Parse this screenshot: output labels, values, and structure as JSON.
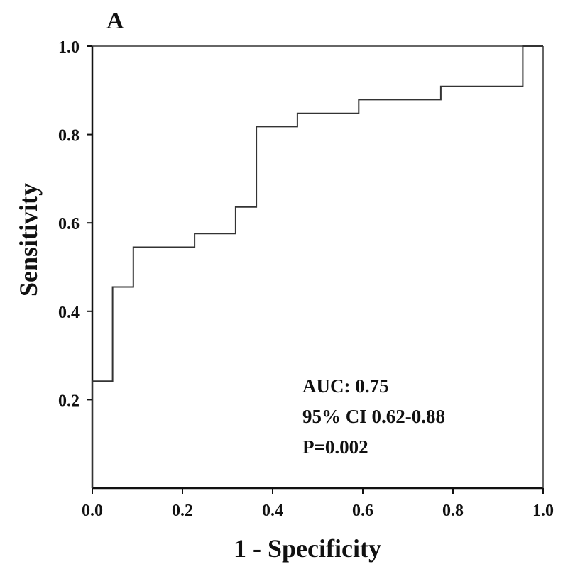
{
  "chart_data": {
    "type": "line",
    "panel_label": "A",
    "xlabel": "1 - Specificity",
    "ylabel": "Sensitivity",
    "xlim": [
      0.0,
      1.0
    ],
    "ylim": [
      0.0,
      1.0
    ],
    "x_ticks": [
      "0.0",
      "0.2",
      "0.4",
      "0.6",
      "0.8",
      "1.0"
    ],
    "y_ticks": [
      "0.2",
      "0.4",
      "0.6",
      "0.8",
      "1.0"
    ],
    "grid": false,
    "line_style": "step",
    "series": [
      {
        "points": [
          [
            0.0,
            0.0
          ],
          [
            0.0,
            0.242
          ],
          [
            0.045,
            0.242
          ],
          [
            0.045,
            0.455
          ],
          [
            0.091,
            0.455
          ],
          [
            0.091,
            0.545
          ],
          [
            0.227,
            0.545
          ],
          [
            0.227,
            0.576
          ],
          [
            0.318,
            0.576
          ],
          [
            0.318,
            0.636
          ],
          [
            0.364,
            0.636
          ],
          [
            0.364,
            0.818
          ],
          [
            0.455,
            0.818
          ],
          [
            0.455,
            0.848
          ],
          [
            0.591,
            0.848
          ],
          [
            0.591,
            0.879
          ],
          [
            0.773,
            0.879
          ],
          [
            0.773,
            0.909
          ],
          [
            0.955,
            0.909
          ],
          [
            0.955,
            1.0
          ],
          [
            1.0,
            1.0
          ]
        ]
      }
    ],
    "annotations": [
      "AUC: 0.75",
      "95% CI 0.62-0.88",
      "P=0.002"
    ],
    "colors": {
      "line": "#333333",
      "axis": "#111111",
      "text": "#111111"
    }
  }
}
